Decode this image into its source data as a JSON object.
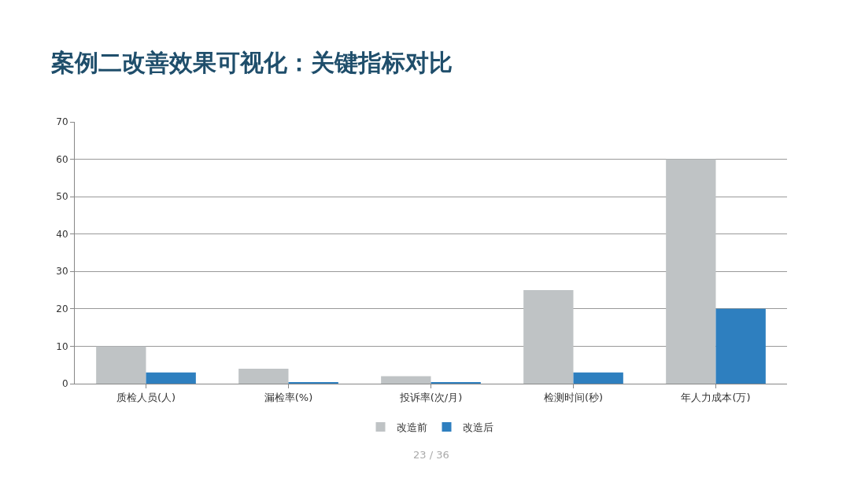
{
  "chart_data": {
    "type": "bar",
    "title": "案例二改善效果可视化：关键指标对比",
    "categories": [
      "质检人员(人)",
      "漏检率(%)",
      "投诉率(次/月)",
      "检测时间(秒)",
      "年人力成本(万)"
    ],
    "series": [
      {
        "name": "改造前",
        "color": "#bfc3c5",
        "values": [
          10,
          4,
          2,
          25,
          60
        ]
      },
      {
        "name": "改造后",
        "color": "#2e7fbf",
        "values": [
          3,
          0.3,
          0.3,
          3,
          20
        ]
      }
    ],
    "ylim": [
      0,
      70
    ],
    "yticks": [
      0,
      10,
      20,
      30,
      40,
      50,
      60,
      70
    ],
    "grid": "y",
    "legend": "bottom",
    "annotations": [
      "23 / 36"
    ]
  }
}
